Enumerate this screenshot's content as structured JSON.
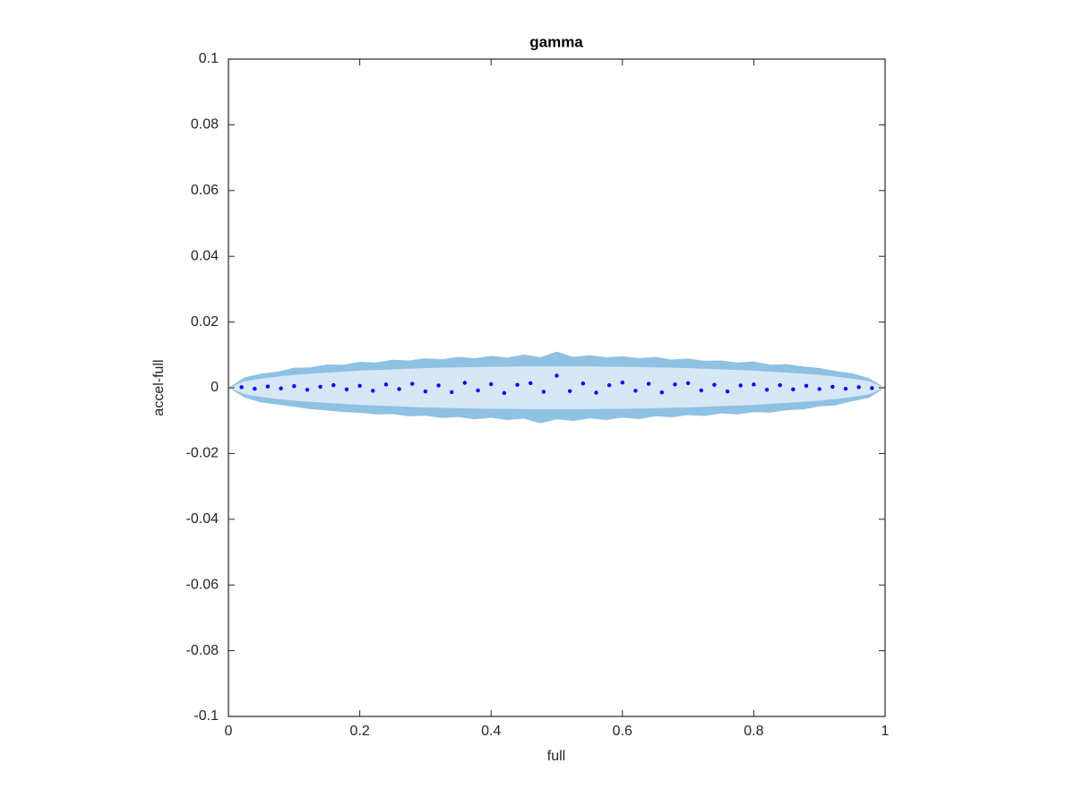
{
  "chart_data": {
    "type": "scatter",
    "title": "gamma",
    "x_label": "full",
    "y_label": "accel-full",
    "xlim": [
      0,
      1
    ],
    "ylim": [
      -0.1,
      0.1
    ],
    "xticks": [
      0,
      0.2,
      0.4,
      0.6,
      0.8,
      1
    ],
    "yticks": [
      -0.1,
      -0.08,
      -0.06,
      -0.04,
      -0.02,
      0,
      0.02,
      0.04,
      0.06,
      0.08,
      0.1
    ],
    "color": "#0000ff",
    "x": [
      0.02,
      0.04,
      0.06,
      0.08,
      0.1,
      0.12,
      0.14,
      0.16,
      0.18,
      0.2,
      0.22,
      0.24,
      0.26,
      0.28,
      0.3,
      0.32,
      0.34,
      0.36,
      0.38,
      0.4,
      0.42,
      0.44,
      0.46,
      0.48,
      0.5,
      0.52,
      0.54,
      0.56,
      0.58,
      0.6,
      0.62,
      0.64,
      0.66,
      0.68,
      0.7,
      0.72,
      0.74,
      0.76,
      0.78,
      0.8,
      0.82,
      0.84,
      0.86,
      0.88,
      0.9,
      0.92,
      0.94,
      0.96,
      0.98
    ],
    "y": [
      0.0002,
      -0.0003,
      0.0004,
      -0.0002,
      0.0005,
      -0.0006,
      0.0003,
      0.0008,
      -0.0005,
      0.0006,
      -0.0009,
      0.001,
      -0.0004,
      0.0012,
      -0.0011,
      0.0007,
      -0.0013,
      0.0015,
      -0.0008,
      0.0011,
      -0.0016,
      0.0009,
      0.0014,
      -0.0012,
      0.0037,
      -0.001,
      0.0013,
      -0.0015,
      0.0008,
      0.0016,
      -0.0009,
      0.0012,
      -0.0014,
      0.001,
      0.0014,
      -0.0008,
      0.0009,
      -0.0011,
      0.0007,
      0.001,
      -0.0006,
      0.0008,
      -0.0005,
      0.0006,
      -0.0004,
      0.0003,
      -0.0003,
      0.0002,
      -0.0001
    ],
    "band_x": [
      0,
      0.025,
      0.05,
      0.075,
      0.1,
      0.125,
      0.15,
      0.175,
      0.2,
      0.225,
      0.25,
      0.275,
      0.3,
      0.325,
      0.35,
      0.375,
      0.4,
      0.425,
      0.45,
      0.475,
      0.5,
      0.525,
      0.55,
      0.575,
      0.6,
      0.625,
      0.65,
      0.675,
      0.7,
      0.725,
      0.75,
      0.775,
      0.8,
      0.825,
      0.85,
      0.875,
      0.9,
      0.925,
      0.95,
      0.975,
      1
    ],
    "bands": [
      {
        "color": "#8fc1e3",
        "upper": [
          0,
          0.0032,
          0.0043,
          0.0049,
          0.0061,
          0.0062,
          0.0071,
          0.007,
          0.0079,
          0.0077,
          0.0085,
          0.0083,
          0.009,
          0.0087,
          0.0094,
          0.009,
          0.0097,
          0.0092,
          0.0101,
          0.0093,
          0.011,
          0.0094,
          0.0099,
          0.0093,
          0.0096,
          0.009,
          0.0094,
          0.0086,
          0.0089,
          0.0082,
          0.0083,
          0.0077,
          0.008,
          0.007,
          0.0072,
          0.0065,
          0.006,
          0.0051,
          0.0044,
          0.003,
          0
        ],
        "lower": [
          0,
          -0.003,
          -0.0045,
          -0.0051,
          -0.0058,
          -0.0065,
          -0.0069,
          -0.0074,
          -0.0076,
          -0.0081,
          -0.008,
          -0.0087,
          -0.0085,
          -0.0092,
          -0.0089,
          -0.0096,
          -0.0091,
          -0.0098,
          -0.0094,
          -0.0108,
          -0.0096,
          -0.0101,
          -0.0093,
          -0.0098,
          -0.0091,
          -0.0095,
          -0.0087,
          -0.009,
          -0.0083,
          -0.0086,
          -0.0078,
          -0.0081,
          -0.0074,
          -0.0076,
          -0.0068,
          -0.0066,
          -0.0057,
          -0.0053,
          -0.0041,
          -0.0031,
          0
        ]
      },
      {
        "color": "#d7e7f5",
        "upper": [
          0,
          0.002,
          0.0028,
          0.0034,
          0.0039,
          0.0043,
          0.0046,
          0.0049,
          0.0052,
          0.0054,
          0.0056,
          0.0058,
          0.006,
          0.0061,
          0.0062,
          0.0063,
          0.0064,
          0.0064,
          0.0065,
          0.0065,
          0.0065,
          0.0065,
          0.0065,
          0.0064,
          0.0064,
          0.0063,
          0.0062,
          0.0061,
          0.006,
          0.0058,
          0.0056,
          0.0054,
          0.0052,
          0.0049,
          0.0046,
          0.0043,
          0.0039,
          0.0034,
          0.0028,
          0.002,
          0
        ],
        "lower": [
          0,
          -0.002,
          -0.0028,
          -0.0034,
          -0.0039,
          -0.0043,
          -0.0046,
          -0.0049,
          -0.0052,
          -0.0054,
          -0.0056,
          -0.0058,
          -0.006,
          -0.0061,
          -0.0062,
          -0.0063,
          -0.0064,
          -0.0064,
          -0.0065,
          -0.0065,
          -0.0065,
          -0.0065,
          -0.0065,
          -0.0064,
          -0.0064,
          -0.0063,
          -0.0062,
          -0.0061,
          -0.006,
          -0.0058,
          -0.0056,
          -0.0054,
          -0.0052,
          -0.0049,
          -0.0046,
          -0.0043,
          -0.0039,
          -0.0034,
          -0.0028,
          -0.002,
          0
        ]
      }
    ]
  }
}
